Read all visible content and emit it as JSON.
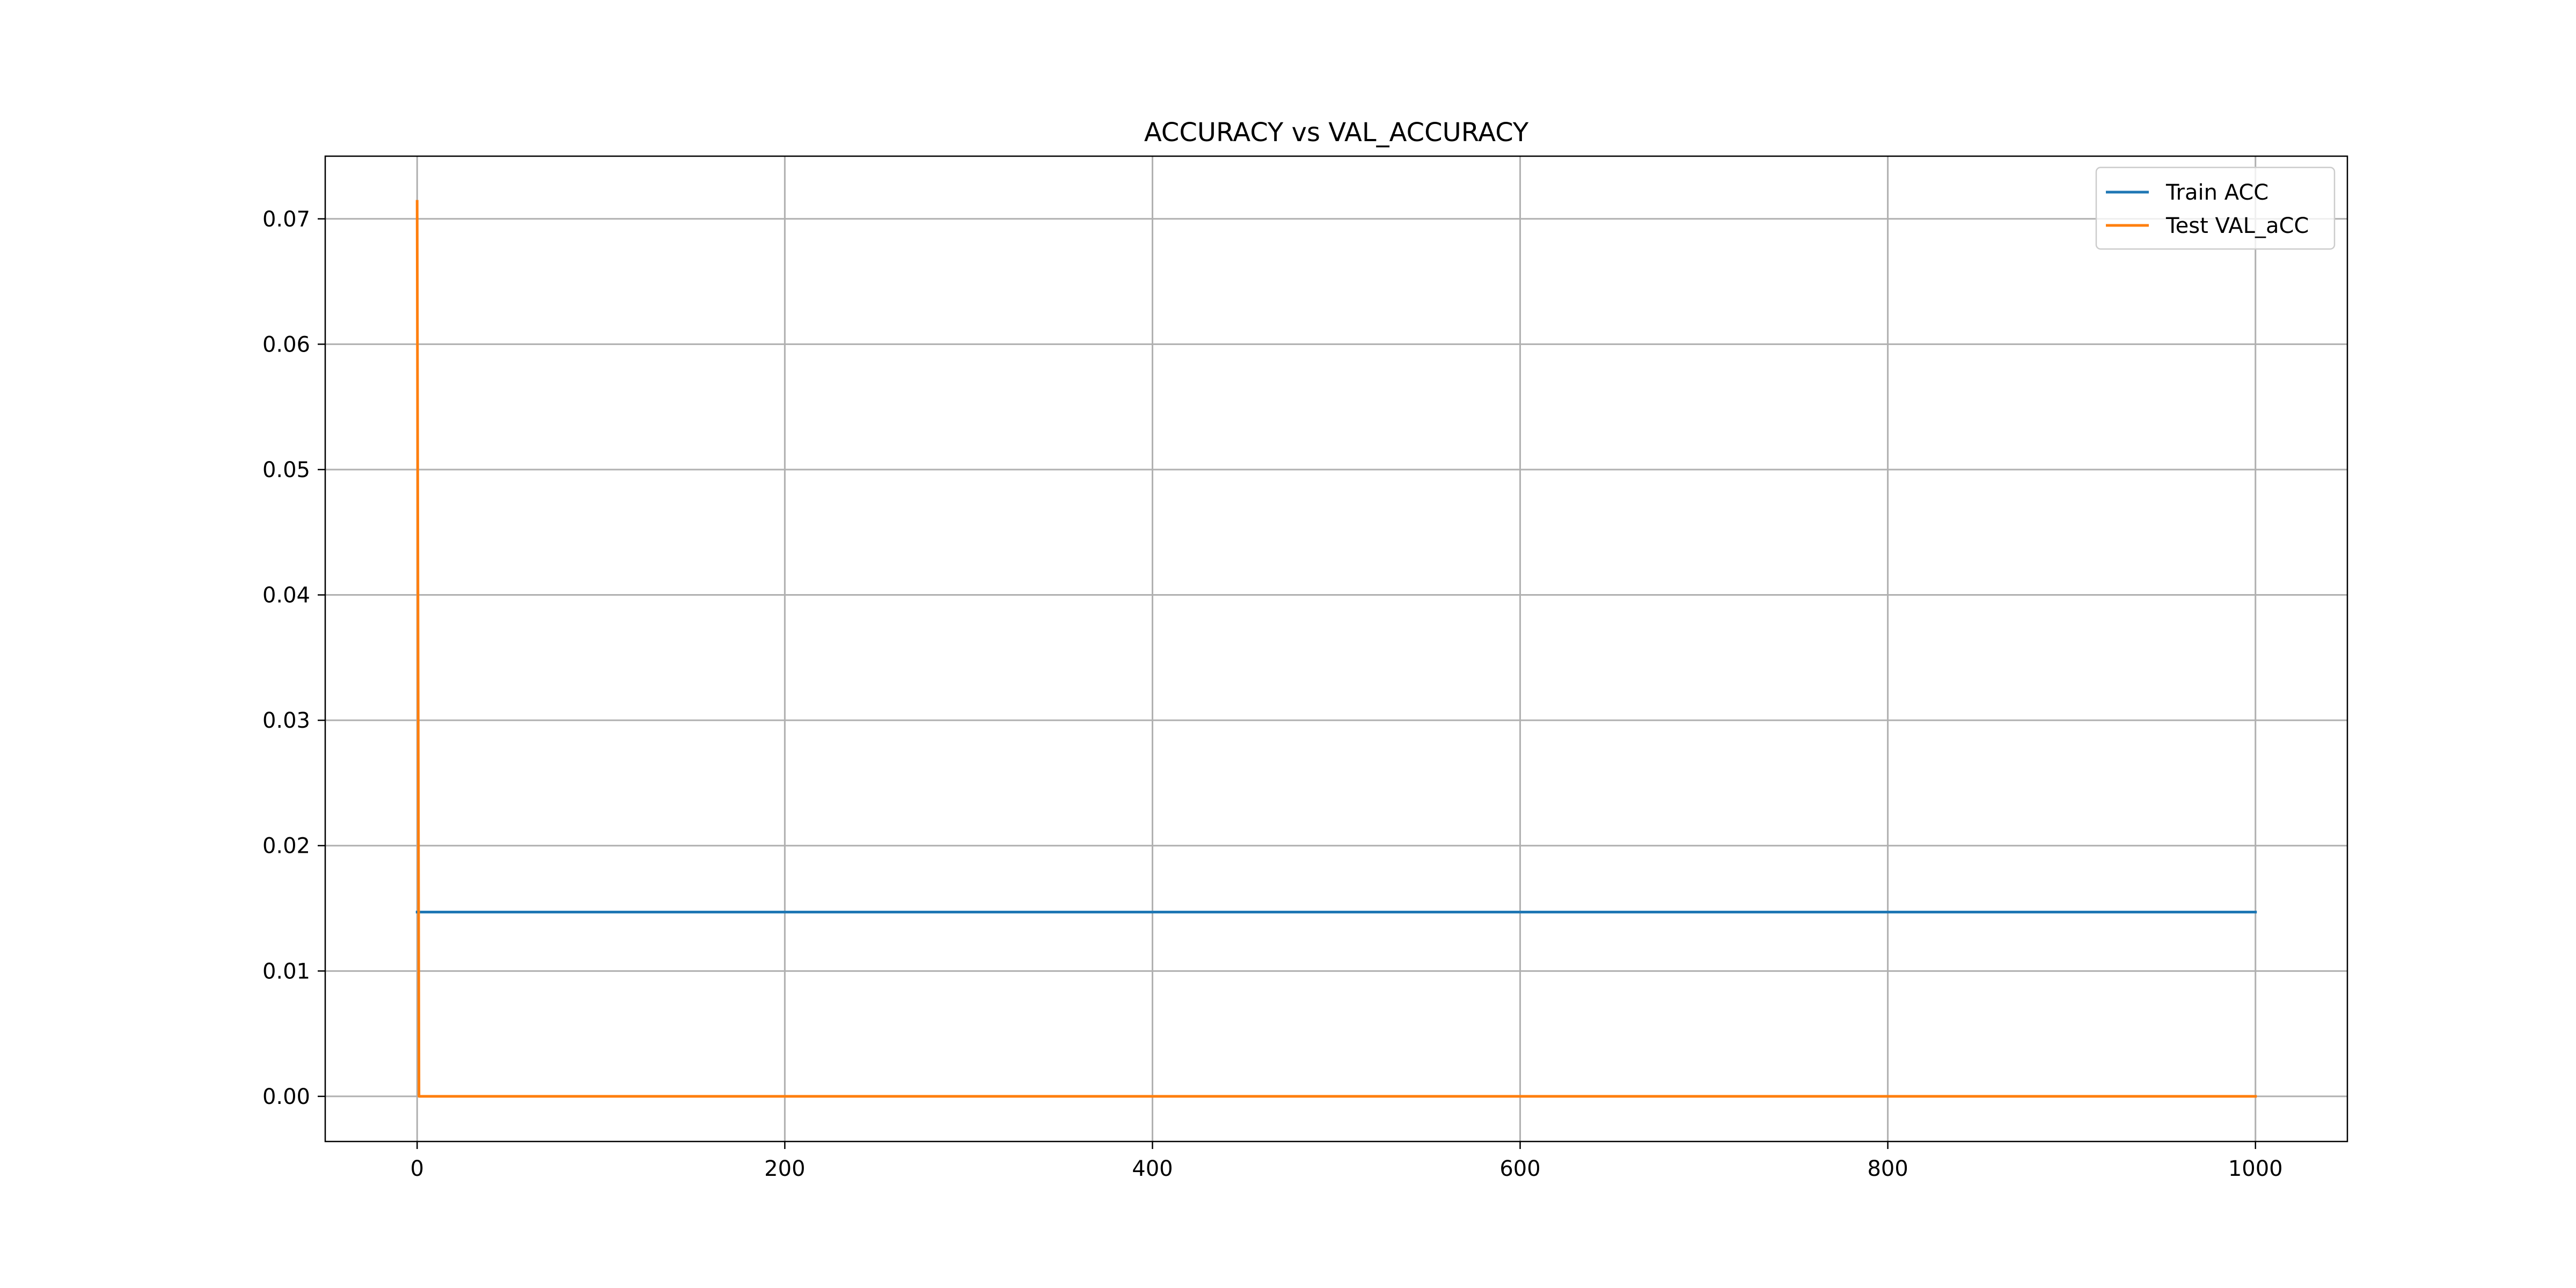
{
  "chart_data": {
    "type": "line",
    "title": "ACCURACY vs VAL_ACCURACY",
    "xlabel": "",
    "ylabel": "",
    "xlim": [
      -50,
      1050
    ],
    "ylim": [
      -0.0036,
      0.075
    ],
    "xticks": [
      0,
      200,
      400,
      600,
      800,
      1000
    ],
    "yticks": [
      0.0,
      0.01,
      0.02,
      0.03,
      0.04,
      0.05,
      0.06,
      0.07
    ],
    "grid": true,
    "legend_position": "top-right",
    "series": [
      {
        "name": "Train ACC",
        "color": "#1f77b4",
        "x": [
          0,
          1000
        ],
        "y": [
          0.0147,
          0.0147
        ]
      },
      {
        "name": "Test VAL_aCC",
        "color": "#ff7f0e",
        "x": [
          0,
          1,
          2,
          1000
        ],
        "y": [
          0.0714,
          0.0,
          0.0,
          0.0
        ]
      }
    ]
  }
}
